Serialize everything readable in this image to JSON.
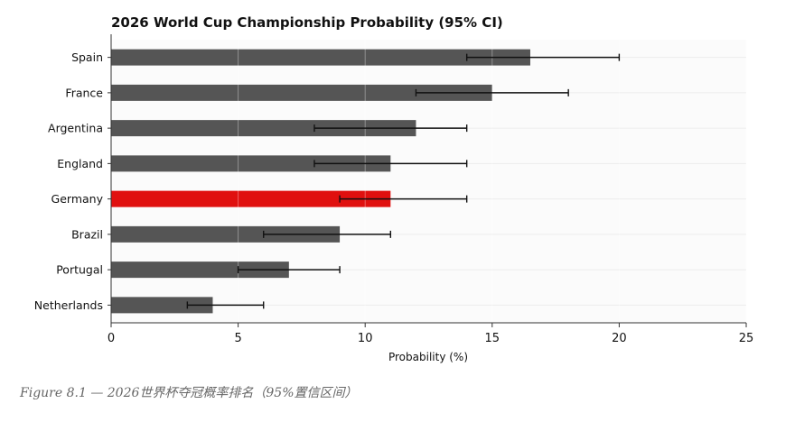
{
  "chart_data": {
    "type": "bar",
    "orientation": "horizontal",
    "title": "2026 World Cup Championship Probability (95% CI)",
    "xlabel": "Probability (%)",
    "ylabel": "",
    "xlim": [
      0,
      25
    ],
    "xticks": [
      0,
      5,
      10,
      15,
      20,
      25
    ],
    "grid": true,
    "categories": [
      "Spain",
      "France",
      "Argentina",
      "England",
      "Germany",
      "Brazil",
      "Portugal",
      "Netherlands"
    ],
    "values": [
      16.5,
      15,
      12,
      11,
      11,
      9,
      7,
      4
    ],
    "ci_lower": [
      14,
      12,
      8,
      8,
      9,
      6,
      5,
      3
    ],
    "ci_upper": [
      20,
      18,
      14,
      14,
      14,
      11,
      9,
      6
    ],
    "highlight": "Germany",
    "colors": {
      "bar": "#555555",
      "highlight": "#e0100f",
      "error": "#111111"
    }
  },
  "caption": "Figure 8.1 — 2026世界杯夺冠概率排名（95%置信区间）"
}
